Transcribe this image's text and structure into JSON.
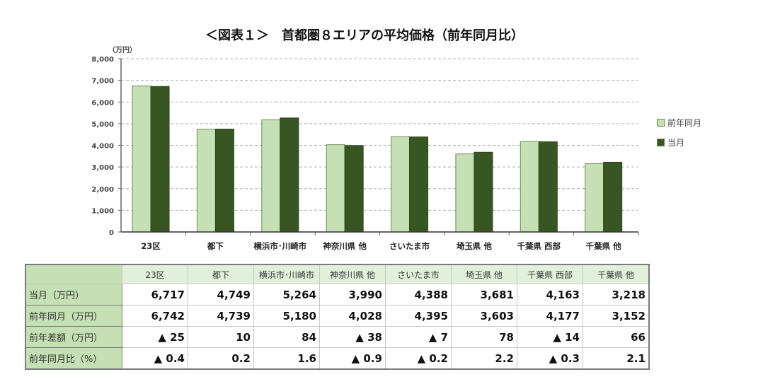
{
  "title": "＜図表１＞　首都圏８エリアの平均価格（前年同月比）",
  "chart_data": {
    "type": "bar",
    "title": "＜図表１＞　首都圏８エリアの平均価格（前年同月比）",
    "ylabel": "（万円）",
    "ylim": [
      0,
      8000
    ],
    "yticks": [
      "0",
      "1,000",
      "2,000",
      "3,000",
      "4,000",
      "5,000",
      "6,000",
      "7,000",
      "8,000"
    ],
    "grid": true,
    "legend_position": "right",
    "categories": [
      "23区",
      "都下",
      "横浜市･川崎市",
      "神奈川県 他",
      "さいたま市",
      "埼玉県 他",
      "千葉県 西部",
      "千葉県 他"
    ],
    "series": [
      {
        "name": "前年同月",
        "color": "#c5e0b4",
        "values": [
          6742,
          4739,
          5180,
          4028,
          4395,
          3603,
          4177,
          3152
        ]
      },
      {
        "name": "当月",
        "color": "#375623",
        "values": [
          6717,
          4749,
          5264,
          3990,
          4388,
          3681,
          4163,
          3218
        ]
      }
    ]
  },
  "table": {
    "columns": [
      "23区",
      "都下",
      "横浜市･川崎市",
      "神奈川県 他",
      "さいたま市",
      "埼玉県 他",
      "千葉県 西部",
      "千葉県 他"
    ],
    "rows": [
      {
        "label": "当月（万円）",
        "values": [
          "6,717",
          "4,749",
          "5,264",
          "3,990",
          "4,388",
          "3,681",
          "4,163",
          "3,218"
        ]
      },
      {
        "label": "前年同月（万円）",
        "values": [
          "6,742",
          "4,739",
          "5,180",
          "4,028",
          "4,395",
          "3,603",
          "4,177",
          "3,152"
        ]
      },
      {
        "label": "前年差額（万円）",
        "values": [
          "▲ 25",
          "10",
          "84",
          "▲ 38",
          "▲ 7",
          "78",
          "▲ 14",
          "66"
        ]
      },
      {
        "label": "前年同月比（%）",
        "values": [
          "▲ 0.4",
          "0.2",
          "1.6",
          "▲ 0.9",
          "▲ 0.2",
          "2.2",
          "▲ 0.3",
          "2.1"
        ]
      }
    ]
  }
}
